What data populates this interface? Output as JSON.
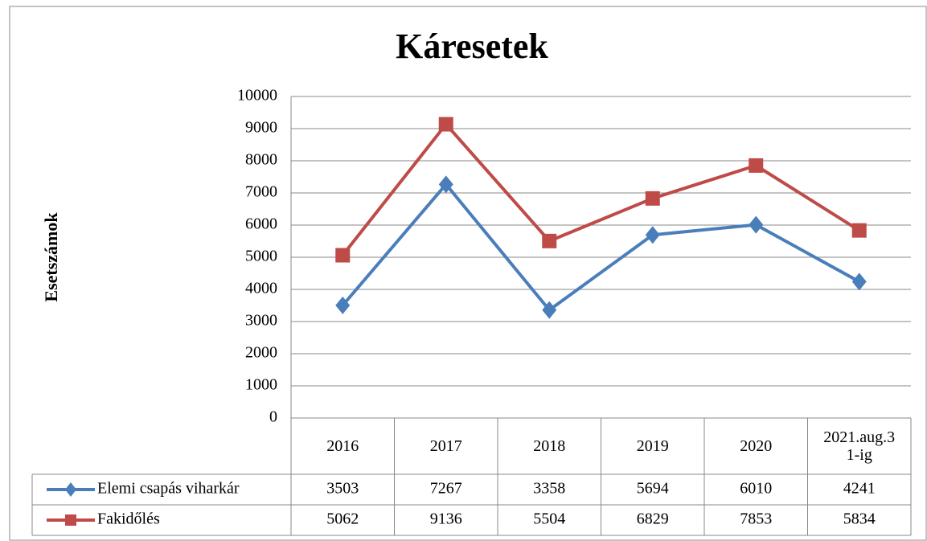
{
  "chart_data": {
    "type": "line",
    "title": "Káresetek",
    "y_label": "Esetszámok",
    "categories": [
      "2016",
      "2017",
      "2018",
      "2019",
      "2020",
      "2021.aug.31-ig"
    ],
    "series": [
      {
        "name": "Elemi csapás viharkár",
        "color": "#4a7ebb",
        "marker": "diamond",
        "values": [
          3503,
          7267,
          3358,
          5694,
          6010,
          4241
        ]
      },
      {
        "name": "Fakidőlés",
        "color": "#be4b48",
        "marker": "square",
        "values": [
          5062,
          9136,
          5504,
          6829,
          7853,
          5834
        ]
      }
    ],
    "ylim": [
      0,
      10000
    ],
    "yticks": [
      0,
      1000,
      2000,
      3000,
      4000,
      5000,
      6000,
      7000,
      8000,
      9000,
      10000
    ],
    "grid": true,
    "data_table": true
  }
}
